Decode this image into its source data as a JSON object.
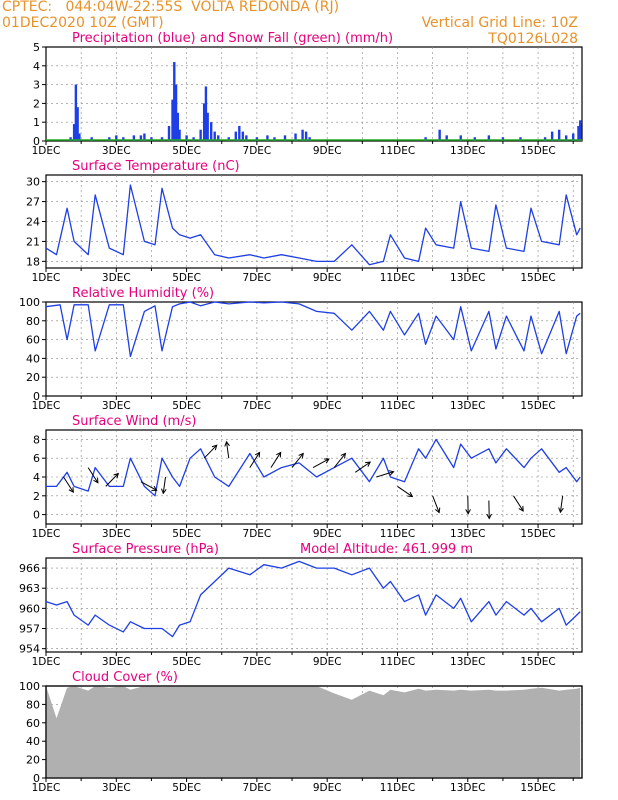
{
  "header": {
    "line1_left": "CPTEC:   044:04W-22:55S  VOLTA REDONDA (RJ)",
    "line2_left": "01DEC2020 10Z (GMT)",
    "line2_right": "Vertical Grid Line: 10Z",
    "line3_right": "TQ0126L028"
  },
  "colors": {
    "header": "#e8922a",
    "title": "#e6007e",
    "series": "#1f3fe6",
    "snow": "#22aa22",
    "cloud": "#b0b0b0"
  },
  "x_ticks": [
    "1DEC",
    "3DEC",
    "5DEC",
    "7DEC",
    "9DEC",
    "11DEC",
    "13DEC",
    "15DEC"
  ],
  "chart_data": [
    {
      "type": "bar",
      "title": "Precipitation (blue) and Snow Fall (green) (mm/h)",
      "ylim": [
        0,
        5
      ],
      "yticks": [
        "0",
        "1",
        "2",
        "3",
        "4",
        "5"
      ],
      "series": [
        {
          "name": "Precipitation",
          "values": [
            [
              1.7,
              0.2
            ],
            [
              1.8,
              0.9
            ],
            [
              1.85,
              3.0
            ],
            [
              1.9,
              1.8
            ],
            [
              1.95,
              0.4
            ],
            [
              2.3,
              0.2
            ],
            [
              2.8,
              0.2
            ],
            [
              3.0,
              0.3
            ],
            [
              3.2,
              0.2
            ],
            [
              3.5,
              0.3
            ],
            [
              3.7,
              0.3
            ],
            [
              3.8,
              0.4
            ],
            [
              4.0,
              0.2
            ],
            [
              4.3,
              0.2
            ],
            [
              4.5,
              0.8
            ],
            [
              4.6,
              2.2
            ],
            [
              4.65,
              4.2
            ],
            [
              4.7,
              3.0
            ],
            [
              4.75,
              1.5
            ],
            [
              4.8,
              0.6
            ],
            [
              5.0,
              0.3
            ],
            [
              5.2,
              0.2
            ],
            [
              5.4,
              0.6
            ],
            [
              5.5,
              2.0
            ],
            [
              5.55,
              2.9
            ],
            [
              5.6,
              1.5
            ],
            [
              5.7,
              1.0
            ],
            [
              5.8,
              0.5
            ],
            [
              5.9,
              0.3
            ],
            [
              6.2,
              0.2
            ],
            [
              6.4,
              0.5
            ],
            [
              6.5,
              0.8
            ],
            [
              6.6,
              0.5
            ],
            [
              6.7,
              0.3
            ],
            [
              7.0,
              0.2
            ],
            [
              7.3,
              0.3
            ],
            [
              7.5,
              0.2
            ],
            [
              7.8,
              0.3
            ],
            [
              8.1,
              0.4
            ],
            [
              8.3,
              0.6
            ],
            [
              8.4,
              0.5
            ],
            [
              8.5,
              0.2
            ],
            [
              11.8,
              0.2
            ],
            [
              12.2,
              0.6
            ],
            [
              12.4,
              0.3
            ],
            [
              12.8,
              0.3
            ],
            [
              13.2,
              0.2
            ],
            [
              13.6,
              0.3
            ],
            [
              14.0,
              0.2
            ],
            [
              14.5,
              0.2
            ],
            [
              15.2,
              0.2
            ],
            [
              15.4,
              0.5
            ],
            [
              15.6,
              0.6
            ],
            [
              15.8,
              0.3
            ],
            [
              16.0,
              0.4
            ],
            [
              16.15,
              0.8
            ],
            [
              16.2,
              1.1
            ]
          ]
        },
        {
          "name": "Snow Fall",
          "values": []
        }
      ]
    },
    {
      "type": "line",
      "title": "Surface Temperature (nC)",
      "ylim": [
        17,
        31
      ],
      "yticks": [
        "18",
        "21",
        "24",
        "27",
        "30"
      ],
      "x": [
        1.0,
        1.3,
        1.6,
        1.8,
        2.2,
        2.4,
        2.8,
        3.2,
        3.4,
        3.8,
        4.1,
        4.3,
        4.6,
        4.8,
        5.1,
        5.4,
        5.8,
        6.2,
        6.8,
        7.2,
        7.7,
        8.2,
        8.7,
        9.2,
        9.7,
        10.2,
        10.6,
        10.8,
        11.2,
        11.6,
        11.8,
        12.1,
        12.6,
        12.8,
        13.1,
        13.6,
        13.8,
        14.1,
        14.6,
        14.8,
        15.1,
        15.6,
        15.8,
        16.1,
        16.2
      ],
      "y": [
        20,
        19,
        26,
        21,
        19,
        28,
        20,
        19,
        29.5,
        21,
        20.5,
        29,
        23,
        22,
        21.5,
        22,
        19,
        18.5,
        19,
        18.5,
        19,
        18.5,
        18,
        18,
        20.5,
        17.5,
        18,
        22,
        18.5,
        18,
        23,
        20.5,
        20,
        27,
        20,
        19.5,
        26.5,
        20,
        19.5,
        26,
        21,
        20.5,
        28,
        22,
        23
      ]
    },
    {
      "type": "line",
      "title": "Relative Humidity (%)",
      "ylim": [
        0,
        100
      ],
      "yticks": [
        "0",
        "20",
        "40",
        "60",
        "80",
        "100"
      ],
      "x": [
        1.0,
        1.4,
        1.6,
        1.8,
        2.2,
        2.4,
        2.8,
        3.2,
        3.4,
        3.8,
        4.1,
        4.3,
        4.6,
        4.8,
        5.1,
        5.4,
        5.8,
        6.2,
        6.8,
        7.2,
        7.7,
        8.2,
        8.7,
        9.2,
        9.7,
        10.2,
        10.6,
        10.8,
        11.2,
        11.6,
        11.8,
        12.1,
        12.6,
        12.8,
        13.1,
        13.6,
        13.8,
        14.1,
        14.6,
        14.8,
        15.1,
        15.6,
        15.8,
        16.1,
        16.2
      ],
      "y": [
        95,
        97,
        60,
        97,
        97,
        48,
        97,
        97,
        42,
        90,
        96,
        48,
        95,
        98,
        100,
        96,
        100,
        98,
        100,
        99,
        100,
        98,
        90,
        88,
        70,
        90,
        70,
        90,
        65,
        88,
        55,
        85,
        60,
        95,
        48,
        90,
        50,
        85,
        48,
        85,
        45,
        90,
        45,
        85,
        88
      ]
    },
    {
      "type": "line",
      "title": "Surface Wind (m/s)",
      "ylim": [
        -1,
        9
      ],
      "yticks": [
        "0",
        "2",
        "4",
        "6",
        "8"
      ],
      "x": [
        1.0,
        1.3,
        1.6,
        1.8,
        2.2,
        2.4,
        2.8,
        3.2,
        3.4,
        3.8,
        4.1,
        4.3,
        4.6,
        4.8,
        5.1,
        5.4,
        5.8,
        6.2,
        6.8,
        7.2,
        7.7,
        8.2,
        8.7,
        9.2,
        9.7,
        10.2,
        10.6,
        10.8,
        11.2,
        11.6,
        11.8,
        12.1,
        12.6,
        12.8,
        13.1,
        13.6,
        13.8,
        14.1,
        14.6,
        14.8,
        15.1,
        15.6,
        15.8,
        16.1,
        16.2
      ],
      "y": [
        3,
        3,
        4.5,
        3,
        2.5,
        5,
        3,
        3,
        6,
        3,
        2,
        6,
        4,
        3,
        6,
        7,
        4,
        3,
        6.5,
        4,
        5,
        5.5,
        4,
        5,
        6,
        3.5,
        6,
        4,
        3.5,
        7,
        6,
        8,
        5,
        7.5,
        6,
        7,
        5.5,
        7,
        5,
        6,
        7,
        4.5,
        5,
        3.5,
        4
      ],
      "arrows": [
        [
          1.5,
          4,
          1.0
        ],
        [
          2.2,
          5,
          1.0
        ],
        [
          2.7,
          3,
          -0.8
        ],
        [
          3.7,
          3.5,
          0.5
        ],
        [
          4.4,
          4,
          2.0
        ],
        [
          5.5,
          6,
          -0.8
        ],
        [
          6.2,
          6,
          -2.0
        ],
        [
          6.8,
          5,
          -1.0
        ],
        [
          7.4,
          5,
          -1.0
        ],
        [
          8.0,
          5,
          -0.9
        ],
        [
          8.6,
          5,
          -0.5
        ],
        [
          9.2,
          5,
          -0.9
        ],
        [
          9.8,
          4.5,
          -0.6
        ],
        [
          10.4,
          4,
          -0.3
        ],
        [
          11.0,
          3,
          0.6
        ],
        [
          12.0,
          2,
          1.2
        ],
        [
          13.0,
          2,
          1.5
        ],
        [
          13.6,
          1.5,
          1.5
        ],
        [
          14.3,
          2,
          1.0
        ],
        [
          15.7,
          2,
          2.0
        ]
      ]
    },
    {
      "type": "line",
      "title": "Surface Pressure (hPa)",
      "annotation": "Model Altitude: 461.999 m",
      "ylim": [
        953.5,
        967.5
      ],
      "yticks": [
        "954",
        "957",
        "960",
        "963",
        "966"
      ],
      "x": [
        1.0,
        1.3,
        1.6,
        1.8,
        2.2,
        2.4,
        2.8,
        3.2,
        3.4,
        3.8,
        4.1,
        4.3,
        4.6,
        4.8,
        5.1,
        5.4,
        5.8,
        6.2,
        6.8,
        7.2,
        7.7,
        8.2,
        8.7,
        9.2,
        9.7,
        10.2,
        10.6,
        10.8,
        11.2,
        11.6,
        11.8,
        12.1,
        12.6,
        12.8,
        13.1,
        13.6,
        13.8,
        14.1,
        14.6,
        14.8,
        15.1,
        15.6,
        15.8,
        16.1,
        16.2
      ],
      "y": [
        961,
        960.5,
        961,
        959,
        957.5,
        959,
        957.5,
        956.5,
        958,
        957,
        957,
        957,
        955.8,
        957.5,
        958,
        962,
        964,
        966,
        965,
        966.5,
        966,
        967,
        966,
        966,
        965,
        966,
        963,
        964,
        961,
        962,
        959,
        962,
        960,
        961.5,
        958,
        961,
        959,
        961,
        959,
        960,
        958,
        960,
        957.5,
        959,
        959.5
      ]
    },
    {
      "type": "area",
      "title": "Cloud Cover (%)",
      "ylim": [
        0,
        100
      ],
      "yticks": [
        "0",
        "20",
        "40",
        "60",
        "80",
        "100"
      ],
      "x": [
        1.0,
        1.3,
        1.6,
        1.8,
        2.2,
        2.4,
        2.8,
        3.2,
        3.4,
        3.8,
        4.1,
        4.3,
        4.6,
        4.8,
        5.1,
        5.4,
        5.8,
        6.2,
        6.8,
        7.2,
        7.7,
        8.2,
        8.7,
        9.2,
        9.7,
        10.2,
        10.6,
        10.8,
        11.2,
        11.6,
        11.8,
        12.1,
        12.6,
        12.8,
        13.1,
        13.6,
        13.8,
        14.1,
        14.6,
        14.8,
        15.1,
        15.6,
        15.8,
        16.1,
        16.2
      ],
      "y": [
        100,
        65,
        98,
        100,
        95,
        100,
        98,
        100,
        96,
        100,
        100,
        99,
        100,
        100,
        100,
        100,
        100,
        100,
        100,
        100,
        100,
        100,
        100,
        92,
        85,
        95,
        90,
        96,
        93,
        97,
        95,
        96,
        95,
        96,
        95,
        96,
        95,
        95,
        96,
        97,
        98,
        95,
        96,
        97,
        98
      ]
    }
  ]
}
